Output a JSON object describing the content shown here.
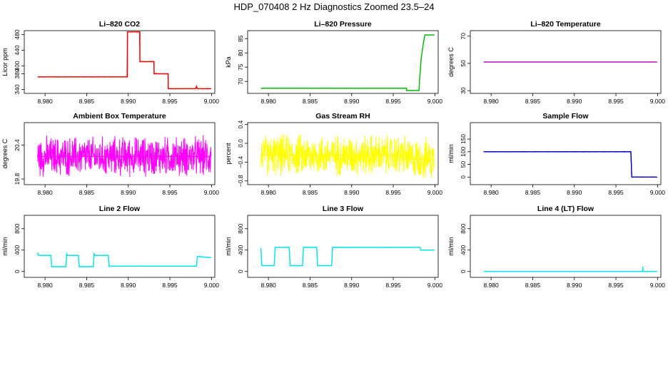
{
  "page": {
    "title": "HDP_070408  2 Hz Diagnostics Zoomed 23.5–24"
  },
  "x_axis": {
    "ticks": [
      8.98,
      8.985,
      8.99,
      8.995,
      9.0
    ],
    "tick_labels": [
      "8.980",
      "8.985",
      "8.990",
      "8.995",
      "9.000"
    ]
  },
  "chart_data": [
    {
      "type": "line",
      "title": "Li–820 CO2",
      "xlabel": "",
      "ylabel": "Licor ppm",
      "xlim": [
        8.9775,
        9.0004
      ],
      "ylim": [
        330,
        490
      ],
      "yticks": [
        340,
        380,
        400,
        440,
        480
      ],
      "ytick_labels": [
        "340",
        "380",
        "400",
        "440",
        "480"
      ],
      "color": "#ff0000",
      "noise": 0.8,
      "points": [
        [
          8.9791,
          372
        ],
        [
          8.9899,
          372
        ],
        [
          8.9899,
          487
        ],
        [
          8.9914,
          487
        ],
        [
          8.9914,
          411
        ],
        [
          8.9931,
          411
        ],
        [
          8.9931,
          380
        ],
        [
          8.9948,
          380
        ],
        [
          8.9948,
          342
        ],
        [
          8.9981,
          342
        ],
        [
          8.9982,
          348
        ],
        [
          8.9983,
          342
        ],
        [
          8.99995,
          342
        ]
      ]
    },
    {
      "type": "line",
      "title": "Li–820 Pressure",
      "xlabel": "",
      "ylabel": "kPa",
      "xlim": [
        8.9775,
        9.0004
      ],
      "ylim": [
        65.8,
        87.8
      ],
      "yticks": [
        70,
        75,
        80,
        85
      ],
      "ytick_labels": [
        "70",
        "75",
        "80",
        "85"
      ],
      "color": "#00c000",
      "noise": 0.1,
      "points": [
        [
          8.9791,
          67.6
        ],
        [
          8.9966,
          67.6
        ],
        [
          8.9966,
          66.8
        ],
        [
          8.9981,
          66.8
        ],
        [
          8.99815,
          70
        ],
        [
          8.99835,
          78
        ],
        [
          8.9986,
          83
        ],
        [
          8.9988,
          86.3
        ],
        [
          8.99995,
          86.3
        ]
      ]
    },
    {
      "type": "line",
      "title": "Li–820 Temperature",
      "xlabel": "",
      "ylabel": "degrees C",
      "xlim": [
        8.9775,
        9.0004
      ],
      "ylim": [
        28,
        74
      ],
      "yticks": [
        30,
        50,
        70
      ],
      "ytick_labels": [
        "30",
        "50",
        "70"
      ],
      "color": "#c000c0",
      "noise": 0,
      "points": [
        [
          8.9791,
          51
        ],
        [
          8.99995,
          51
        ]
      ]
    },
    {
      "type": "line",
      "title": "Ambient Box Temperature",
      "xlabel": "",
      "ylabel": "degrees C",
      "xlim": [
        8.9775,
        9.0004
      ],
      "ylim": [
        19.7,
        20.8
      ],
      "yticks": [
        19.8,
        20.4
      ],
      "ytick_labels": [
        "19.8",
        "20.4"
      ],
      "color": "#ff00ff",
      "noise": 0.34,
      "noise_type": "spiky",
      "points": [
        [
          8.9791,
          20.2
        ],
        [
          8.99995,
          20.2
        ]
      ]
    },
    {
      "type": "line",
      "title": "Gas Stream RH",
      "xlabel": "",
      "ylabel": "percent",
      "xlim": [
        8.9775,
        9.0004
      ],
      "ylim": [
        -0.88,
        0.44
      ],
      "yticks": [
        -0.8,
        -0.4,
        0,
        0.4
      ],
      "ytick_labels": [
        "−0.8",
        "−0.4",
        "0.0",
        "0.4"
      ],
      "color": "#ffff00",
      "noise": 0.42,
      "noise_type": "spiky",
      "points": [
        [
          8.9791,
          -0.25
        ],
        [
          8.9965,
          -0.25
        ],
        [
          8.9967,
          -0.33
        ],
        [
          8.99995,
          -0.33
        ]
      ]
    },
    {
      "type": "line",
      "title": "Sample Flow",
      "xlabel": "",
      "ylabel": "ml/min",
      "xlim": [
        8.9775,
        9.0004
      ],
      "ylim": [
        -30,
        215
      ],
      "yticks": [
        0,
        50,
        100,
        150
      ],
      "ytick_labels": [
        "0",
        "50",
        "100",
        "150"
      ],
      "color": "#0000cc",
      "noise": 1.2,
      "points": [
        [
          8.9791,
          100
        ],
        [
          8.9968,
          100
        ],
        [
          8.9969,
          0
        ],
        [
          8.99995,
          0
        ]
      ]
    },
    {
      "type": "line",
      "title": "Line 2 Flow",
      "xlabel": "",
      "ylabel": "ml/min",
      "xlim": [
        8.9775,
        9.0004
      ],
      "ylim": [
        -110,
        1050
      ],
      "yticks": [
        0,
        400,
        800
      ],
      "ytick_labels": [
        "0",
        "400",
        "800"
      ],
      "color": "#00e5ee",
      "noise": 5,
      "points": [
        [
          8.9791,
          350
        ],
        [
          8.9792,
          300
        ],
        [
          8.9807,
          300
        ],
        [
          8.9808,
          90
        ],
        [
          8.9825,
          90
        ],
        [
          8.9826,
          330
        ],
        [
          8.9827,
          300
        ],
        [
          8.984,
          300
        ],
        [
          8.9841,
          90
        ],
        [
          8.9858,
          90
        ],
        [
          8.9859,
          340
        ],
        [
          8.986,
          300
        ],
        [
          8.9876,
          300
        ],
        [
          8.9877,
          90
        ],
        [
          8.9879,
          100
        ],
        [
          8.9982,
          100
        ],
        [
          8.9983,
          280
        ],
        [
          8.99995,
          260
        ]
      ]
    },
    {
      "type": "line",
      "title": "Line 3 Flow",
      "xlabel": "",
      "ylabel": "ml/min",
      "xlim": [
        8.9775,
        9.0004
      ],
      "ylim": [
        -110,
        1050
      ],
      "yticks": [
        0,
        400,
        800
      ],
      "ytick_labels": [
        "0",
        "400",
        "800"
      ],
      "color": "#00e5ee",
      "noise": 5,
      "points": [
        [
          8.9791,
          440
        ],
        [
          8.9792,
          110
        ],
        [
          8.9807,
          110
        ],
        [
          8.9808,
          450
        ],
        [
          8.9825,
          450
        ],
        [
          8.9826,
          110
        ],
        [
          8.9841,
          110
        ],
        [
          8.9842,
          450
        ],
        [
          8.9858,
          450
        ],
        [
          8.9859,
          110
        ],
        [
          8.9876,
          110
        ],
        [
          8.9877,
          450
        ],
        [
          8.9982,
          450
        ],
        [
          8.9983,
          400
        ],
        [
          8.99995,
          400
        ]
      ]
    },
    {
      "type": "line",
      "title": "Line 4 (LT) Flow",
      "xlabel": "",
      "ylabel": "ml/min",
      "xlim": [
        8.9775,
        9.0004
      ],
      "ylim": [
        -110,
        1050
      ],
      "yticks": [
        0,
        400,
        800
      ],
      "ytick_labels": [
        "0",
        "400",
        "800"
      ],
      "color": "#00e5ee",
      "noise": 0,
      "points": [
        [
          8.9791,
          0
        ],
        [
          8.9982,
          0
        ],
        [
          8.99822,
          90
        ],
        [
          8.99826,
          10
        ],
        [
          8.99835,
          0
        ],
        [
          8.99995,
          0
        ]
      ]
    }
  ]
}
